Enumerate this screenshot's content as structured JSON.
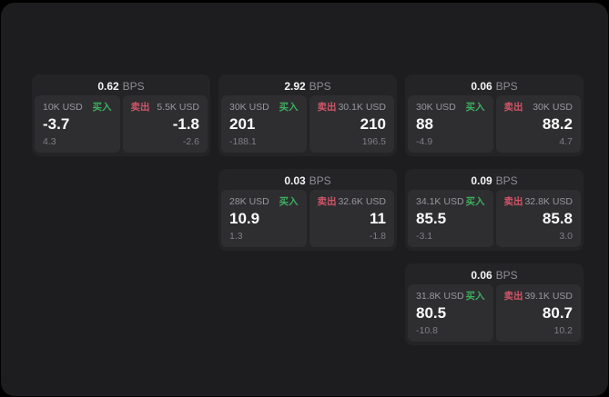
{
  "labels": {
    "bps_unit": "BPS",
    "buy": "买入",
    "sell": "卖出"
  },
  "colors": {
    "buy": "#3dae5e",
    "sell": "#d05568",
    "panel": "#1d1d1f",
    "card": "#242427",
    "subpanel": "#2e2e31"
  },
  "cards": [
    {
      "row": 1,
      "col": 1,
      "bps": "0.62",
      "buy": {
        "amount": "10K USD",
        "value": "-3.7",
        "sub": "4.3"
      },
      "sell": {
        "amount": "5.5K USD",
        "value": "-1.8",
        "sub": "-2.6"
      }
    },
    {
      "row": 1,
      "col": 2,
      "bps": "2.92",
      "buy": {
        "amount": "30K USD",
        "value": "201",
        "sub": "-188.1"
      },
      "sell": {
        "amount": "30.1K USD",
        "value": "210",
        "sub": "196.5"
      }
    },
    {
      "row": 1,
      "col": 3,
      "bps": "0.06",
      "buy": {
        "amount": "30K USD",
        "value": "88",
        "sub": "-4.9"
      },
      "sell": {
        "amount": "30K USD",
        "value": "88.2",
        "sub": "4.7"
      }
    },
    {
      "row": 2,
      "col": 2,
      "bps": "0.03",
      "buy": {
        "amount": "28K USD",
        "value": "10.9",
        "sub": "1.3"
      },
      "sell": {
        "amount": "32.6K USD",
        "value": "11",
        "sub": "-1.8"
      }
    },
    {
      "row": 2,
      "col": 3,
      "bps": "0.09",
      "buy": {
        "amount": "34.1K USD",
        "value": "85.5",
        "sub": "-3.1"
      },
      "sell": {
        "amount": "32.8K USD",
        "value": "85.8",
        "sub": "3.0"
      }
    },
    {
      "row": 3,
      "col": 3,
      "bps": "0.06",
      "buy": {
        "amount": "31.8K USD",
        "value": "80.5",
        "sub": "-10.8"
      },
      "sell": {
        "amount": "39.1K USD",
        "value": "80.7",
        "sub": "10.2"
      }
    }
  ]
}
